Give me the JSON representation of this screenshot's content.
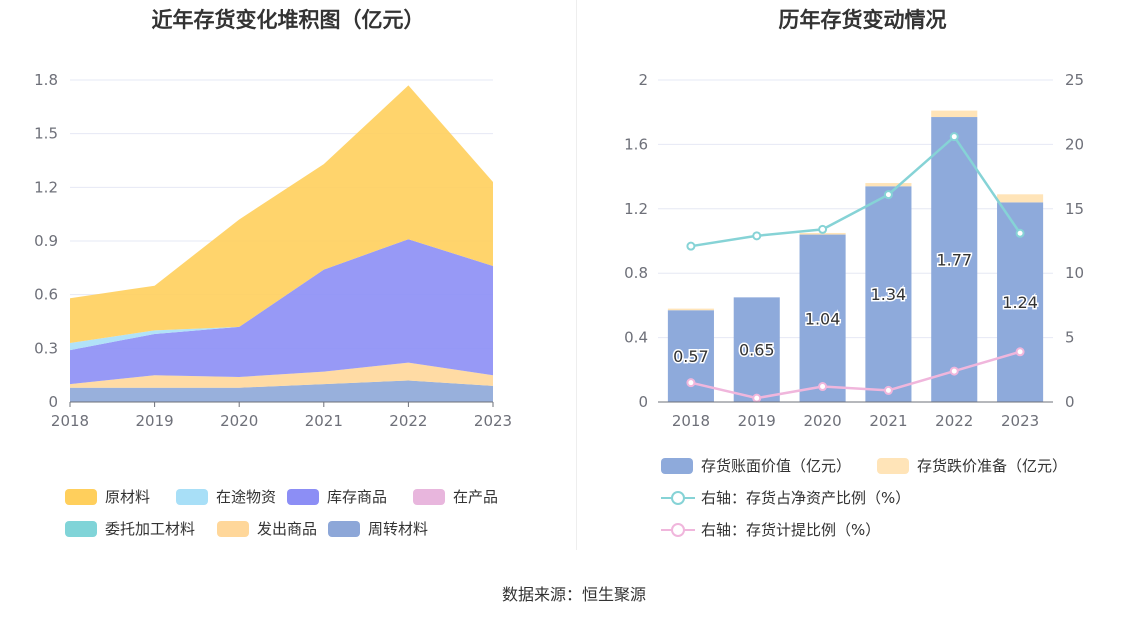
{
  "source_text": "数据来源：恒生聚源",
  "chart_data": [
    {
      "type": "area",
      "title": "近年存货变化堆积图（亿元）",
      "x": [
        "2018",
        "2019",
        "2020",
        "2021",
        "2022",
        "2023"
      ],
      "ylim": [
        0,
        1.8
      ],
      "yticks": [
        "0",
        "0.3",
        "0.6",
        "0.9",
        "1.2",
        "1.5",
        "1.8"
      ],
      "stacked": true,
      "grid": true,
      "legend_position": "bottom",
      "series": [
        {
          "name": "周转材料",
          "color": "#8da7d8",
          "values": [
            0.08,
            0.08,
            0.08,
            0.1,
            0.12,
            0.09
          ]
        },
        {
          "name": "发出商品",
          "color": "#ffd79a",
          "values": [
            0.02,
            0.07,
            0.06,
            0.07,
            0.1,
            0.06
          ]
        },
        {
          "name": "委托加工材料",
          "color": "#80d4d8",
          "values": [
            0.0,
            0.0,
            0.0,
            0.0,
            0.0,
            0.0
          ]
        },
        {
          "name": "在产品",
          "color": "#e8b6dd",
          "values": [
            0.0,
            0.0,
            0.0,
            0.0,
            0.0,
            0.0
          ]
        },
        {
          "name": "库存商品",
          "color": "#8c8ef5",
          "values": [
            0.19,
            0.23,
            0.28,
            0.57,
            0.69,
            0.61
          ]
        },
        {
          "name": "在途物资",
          "color": "#a8dff7",
          "values": [
            0.04,
            0.02,
            0.0,
            0.0,
            0.0,
            0.0
          ]
        },
        {
          "name": "原材料",
          "color": "#ffcf5c",
          "values": [
            0.25,
            0.25,
            0.6,
            0.59,
            0.86,
            0.47
          ]
        }
      ],
      "legend_order": [
        "原材料",
        "在途物资",
        "库存商品",
        "在产品",
        "委托加工材料",
        "发出商品",
        "周转材料"
      ]
    },
    {
      "type": "bar",
      "title": "历年存货变动情况",
      "x": [
        "2018",
        "2019",
        "2020",
        "2021",
        "2022",
        "2023"
      ],
      "ylim_left": [
        0,
        2
      ],
      "yticks_left": [
        "0",
        "0.4",
        "0.8",
        "1.2",
        "1.6",
        "2"
      ],
      "ylim_right": [
        0,
        25
      ],
      "yticks_right": [
        "0",
        "5",
        "10",
        "15",
        "20",
        "25"
      ],
      "grid": true,
      "legend_position": "bottom",
      "series": [
        {
          "name": "存货账面价值（亿元）",
          "kind": "bar",
          "axis": "left",
          "color": "#8eaadb",
          "values": [
            0.57,
            0.65,
            1.04,
            1.34,
            1.77,
            1.24
          ],
          "labels": [
            "0.57",
            "0.65",
            "1.04",
            "1.34",
            "1.77",
            "1.24"
          ]
        },
        {
          "name": "存货跌价准备（亿元）",
          "kind": "bar-stack",
          "axis": "left",
          "color": "#ffe4b8",
          "values": [
            0.01,
            0.0,
            0.01,
            0.02,
            0.04,
            0.05
          ]
        },
        {
          "name": "右轴：存货占净资产比例（%）",
          "kind": "line",
          "axis": "right",
          "color": "#86d3d6",
          "values": [
            12.1,
            12.9,
            13.4,
            16.1,
            20.6,
            13.1
          ]
        },
        {
          "name": "右轴：存货计提比例（%）",
          "kind": "line",
          "axis": "right",
          "color": "#f0b6dc",
          "values": [
            1.5,
            0.3,
            1.2,
            0.9,
            2.4,
            3.9
          ]
        }
      ]
    }
  ]
}
